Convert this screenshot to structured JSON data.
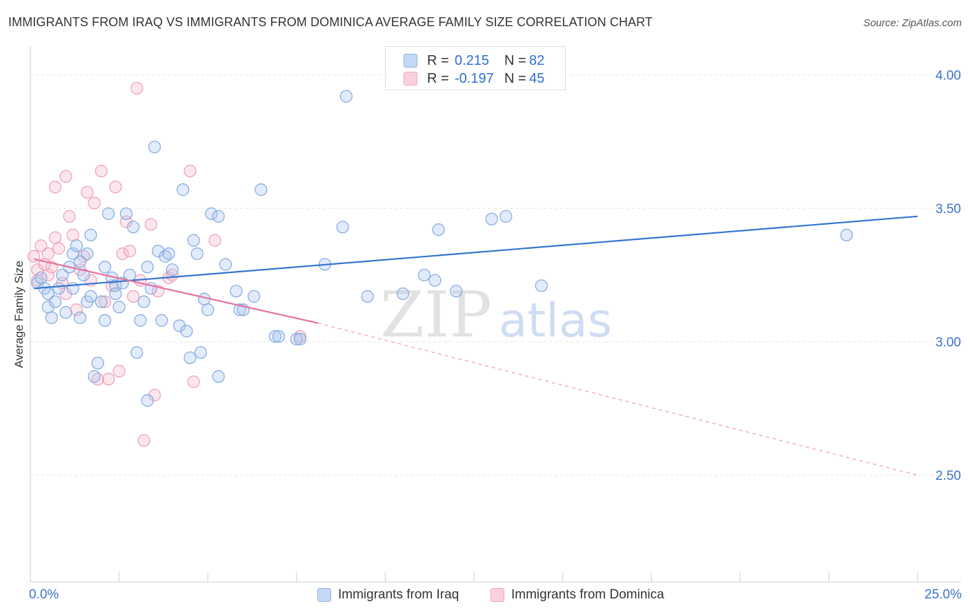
{
  "title": "IMMIGRANTS FROM IRAQ VS IMMIGRANTS FROM DOMINICA AVERAGE FAMILY SIZE CORRELATION CHART",
  "source": "Source: ZipAtlas.com",
  "watermark": {
    "zip": "ZIP",
    "atlas": "atlas"
  },
  "legend": {
    "r_label": "R =",
    "n_label": "N =",
    "iraq": {
      "r": "0.215",
      "n": "82",
      "color": "#a9c6ef"
    },
    "dominica": {
      "r": "-0.197",
      "n": "45",
      "color": "#f5b8cb"
    }
  },
  "colors": {
    "iraq_line": "#3375d0",
    "dominica_line": "#e8709a",
    "tick_text": "#3a74c9"
  },
  "chart_data": {
    "type": "scatter",
    "xlabel": "",
    "ylabel": "Average Family Size",
    "xlim": [
      0,
      25
    ],
    "ylim": [
      2.1,
      4.1
    ],
    "x_tick_labels": [
      "0.0%",
      "25.0%"
    ],
    "y_ticks": [
      2.5,
      3.0,
      3.5,
      4.0
    ],
    "y_tick_labels": [
      "2.50",
      "3.00",
      "3.50",
      "4.00"
    ],
    "series": [
      {
        "name": "Immigrants from Iraq",
        "color": "#a9c6ef",
        "trend": {
          "x": [
            0.1,
            25.0
          ],
          "y": [
            3.2,
            3.47
          ],
          "dashed_to": null
        },
        "points": [
          [
            0.2,
            3.22
          ],
          [
            0.3,
            3.24
          ],
          [
            0.4,
            3.2
          ],
          [
            0.5,
            3.18
          ],
          [
            0.5,
            3.13
          ],
          [
            0.6,
            3.09
          ],
          [
            0.7,
            3.15
          ],
          [
            0.8,
            3.2
          ],
          [
            0.9,
            3.25
          ],
          [
            1.0,
            3.11
          ],
          [
            1.1,
            3.28
          ],
          [
            1.2,
            3.33
          ],
          [
            1.3,
            3.36
          ],
          [
            1.4,
            3.3
          ],
          [
            1.4,
            3.09
          ],
          [
            1.5,
            3.25
          ],
          [
            1.6,
            3.33
          ],
          [
            1.6,
            3.15
          ],
          [
            1.7,
            3.17
          ],
          [
            1.7,
            3.4
          ],
          [
            1.8,
            2.87
          ],
          [
            1.9,
            2.92
          ],
          [
            2.0,
            3.15
          ],
          [
            2.1,
            3.28
          ],
          [
            2.2,
            3.48
          ],
          [
            2.3,
            3.24
          ],
          [
            2.4,
            3.21
          ],
          [
            2.4,
            3.18
          ],
          [
            2.5,
            3.13
          ],
          [
            2.6,
            3.22
          ],
          [
            2.7,
            3.48
          ],
          [
            2.8,
            3.25
          ],
          [
            2.9,
            3.43
          ],
          [
            3.0,
            2.96
          ],
          [
            3.1,
            3.08
          ],
          [
            3.2,
            3.15
          ],
          [
            3.3,
            3.28
          ],
          [
            3.4,
            3.2
          ],
          [
            3.5,
            3.73
          ],
          [
            3.6,
            3.34
          ],
          [
            3.7,
            3.08
          ],
          [
            3.8,
            3.32
          ],
          [
            3.9,
            3.33
          ],
          [
            4.0,
            3.27
          ],
          [
            4.2,
            3.06
          ],
          [
            4.3,
            3.57
          ],
          [
            4.4,
            3.04
          ],
          [
            4.5,
            2.94
          ],
          [
            4.6,
            3.38
          ],
          [
            4.7,
            3.33
          ],
          [
            4.8,
            2.96
          ],
          [
            4.9,
            3.16
          ],
          [
            5.0,
            3.12
          ],
          [
            5.1,
            3.48
          ],
          [
            5.3,
            3.47
          ],
          [
            5.3,
            2.87
          ],
          [
            5.5,
            3.29
          ],
          [
            5.8,
            3.19
          ],
          [
            5.9,
            3.12
          ],
          [
            6.0,
            3.12
          ],
          [
            6.3,
            3.17
          ],
          [
            6.5,
            3.57
          ],
          [
            6.9,
            3.02
          ],
          [
            7.0,
            3.02
          ],
          [
            7.5,
            3.01
          ],
          [
            7.6,
            3.01
          ],
          [
            8.3,
            3.29
          ],
          [
            8.8,
            3.43
          ],
          [
            8.9,
            3.92
          ],
          [
            9.5,
            3.17
          ],
          [
            10.5,
            3.18
          ],
          [
            11.1,
            3.25
          ],
          [
            11.4,
            3.23
          ],
          [
            11.5,
            3.42
          ],
          [
            12.0,
            3.19
          ],
          [
            13.0,
            3.46
          ],
          [
            13.4,
            3.47
          ],
          [
            14.4,
            3.21
          ],
          [
            1.2,
            3.2
          ],
          [
            2.1,
            3.08
          ],
          [
            23.0,
            3.4
          ],
          [
            3.3,
            2.78
          ]
        ]
      },
      {
        "name": "Immigrants from Dominica",
        "color": "#f5b8cb",
        "trend": {
          "x": [
            0.1,
            8.1
          ],
          "y": [
            3.31,
            3.07
          ],
          "dashed_to": [
            25.0,
            2.5
          ]
        },
        "points": [
          [
            0.1,
            3.32
          ],
          [
            0.2,
            3.27
          ],
          [
            0.2,
            3.23
          ],
          [
            0.3,
            3.36
          ],
          [
            0.4,
            3.29
          ],
          [
            0.5,
            3.25
          ],
          [
            0.5,
            3.33
          ],
          [
            0.6,
            3.28
          ],
          [
            0.7,
            3.58
          ],
          [
            0.7,
            3.39
          ],
          [
            0.8,
            3.35
          ],
          [
            0.9,
            3.22
          ],
          [
            1.0,
            3.62
          ],
          [
            1.0,
            3.18
          ],
          [
            1.1,
            3.47
          ],
          [
            1.2,
            3.4
          ],
          [
            1.3,
            3.12
          ],
          [
            1.4,
            3.27
          ],
          [
            1.5,
            3.32
          ],
          [
            1.6,
            3.56
          ],
          [
            1.7,
            3.23
          ],
          [
            1.8,
            3.52
          ],
          [
            1.9,
            2.86
          ],
          [
            2.0,
            3.64
          ],
          [
            2.1,
            3.15
          ],
          [
            2.2,
            2.86
          ],
          [
            2.3,
            3.21
          ],
          [
            2.4,
            3.58
          ],
          [
            2.5,
            2.89
          ],
          [
            2.6,
            3.33
          ],
          [
            2.7,
            3.45
          ],
          [
            2.8,
            3.34
          ],
          [
            2.9,
            3.17
          ],
          [
            3.0,
            3.95
          ],
          [
            3.1,
            3.23
          ],
          [
            3.2,
            2.63
          ],
          [
            3.4,
            3.44
          ],
          [
            3.5,
            2.8
          ],
          [
            3.6,
            3.19
          ],
          [
            3.9,
            3.24
          ],
          [
            4.0,
            3.25
          ],
          [
            4.5,
            3.64
          ],
          [
            4.6,
            2.85
          ],
          [
            5.2,
            3.38
          ],
          [
            7.6,
            3.02
          ]
        ]
      }
    ]
  },
  "bottom_legend": [
    "Immigrants from Iraq",
    "Immigrants from Dominica"
  ]
}
